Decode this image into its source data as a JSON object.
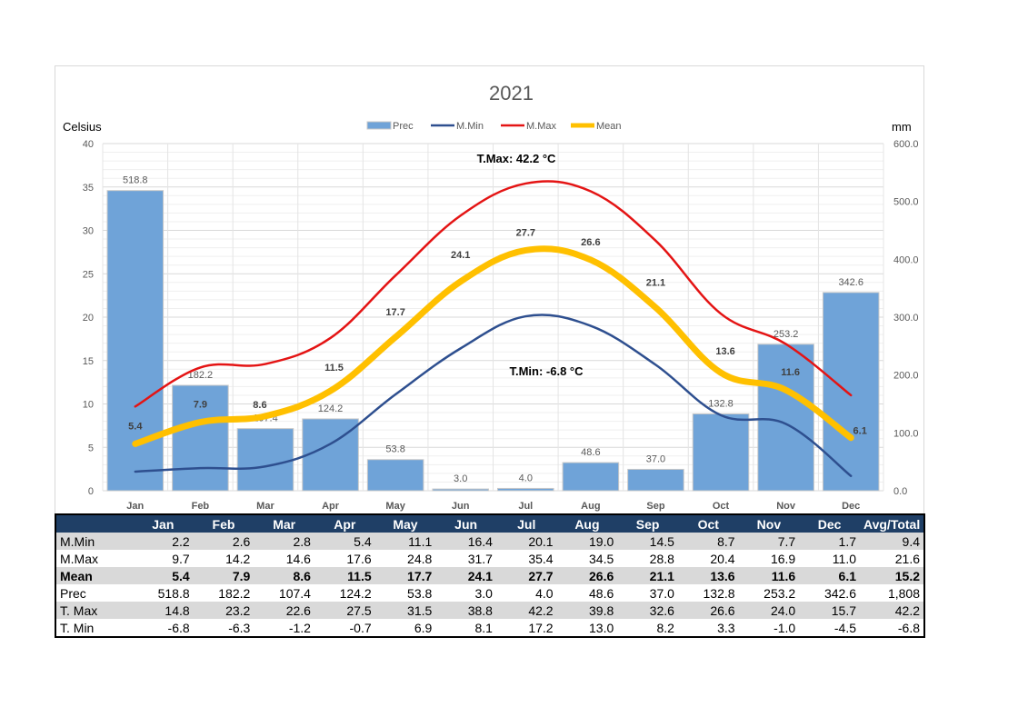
{
  "chart_data": {
    "type": "bar+line",
    "title": "2021",
    "ylabel_left": "Celsius",
    "ylabel_right": "mm",
    "categories": [
      "Jan",
      "Feb",
      "Mar",
      "Apr",
      "May",
      "Jun",
      "Jul",
      "Aug",
      "Sep",
      "Oct",
      "Nov",
      "Dec"
    ],
    "y_left_range": [
      0,
      40
    ],
    "y_left_ticks": [
      "0",
      "5",
      "10",
      "15",
      "20",
      "25",
      "30",
      "35",
      "40"
    ],
    "y_right_range": [
      0,
      600
    ],
    "y_right_ticks": [
      "0.0",
      "100.0",
      "200.0",
      "300.0",
      "400.0",
      "500.0",
      "600.0"
    ],
    "legend": [
      "Prec",
      "M.Min",
      "M.Max",
      "Mean"
    ],
    "legend_position": "top",
    "colors": {
      "Prec": "#6fa3d8",
      "M.Min": "#2e4f8f",
      "M.Max": "#e41414",
      "Mean": "#ffc000"
    },
    "series": [
      {
        "name": "Prec",
        "kind": "bar",
        "axis": "right",
        "values": [
          518.8,
          182.2,
          107.4,
          124.2,
          53.8,
          3.0,
          4.0,
          48.6,
          37.0,
          132.8,
          253.2,
          342.6
        ],
        "labels": [
          "518.8",
          "182.2",
          "107.4",
          "124.2",
          "53.8",
          "3.0",
          "4.0",
          "48.6",
          "37.0",
          "132.8",
          "253.2",
          "342.6"
        ]
      },
      {
        "name": "M.Min",
        "kind": "line",
        "axis": "left",
        "values": [
          2.2,
          2.6,
          2.8,
          5.4,
          11.1,
          16.4,
          20.1,
          19.0,
          14.5,
          8.7,
          7.7,
          1.7
        ]
      },
      {
        "name": "M.Max",
        "kind": "line",
        "axis": "left",
        "values": [
          9.7,
          14.2,
          14.6,
          17.6,
          24.8,
          31.7,
          35.4,
          34.5,
          28.8,
          20.4,
          16.9,
          11.0
        ]
      },
      {
        "name": "Mean",
        "kind": "line",
        "axis": "left",
        "values": [
          5.4,
          7.9,
          8.6,
          11.5,
          17.7,
          24.1,
          27.7,
          26.6,
          21.1,
          13.6,
          11.6,
          6.1
        ],
        "labels": [
          "5.4",
          "7.9",
          "8.6",
          "11.5",
          "17.7",
          "24.1",
          "27.7",
          "26.6",
          "21.1",
          "13.6",
          "11.6",
          "6.1"
        ]
      }
    ],
    "annotations": [
      "T.Max: 42.2 °C",
      "T.Min: -6.8 °C"
    ]
  },
  "table": {
    "headers": [
      "Jan",
      "Feb",
      "Mar",
      "Apr",
      "May",
      "Jun",
      "Jul",
      "Aug",
      "Sep",
      "Oct",
      "Nov",
      "Dec",
      "Avg/Total"
    ],
    "rows": [
      {
        "label": "M.Min",
        "values": [
          "2.2",
          "2.6",
          "2.8",
          "5.4",
          "11.1",
          "16.4",
          "20.1",
          "19.0",
          "14.5",
          "8.7",
          "7.7",
          "1.7",
          "9.4"
        ]
      },
      {
        "label": "M.Max",
        "values": [
          "9.7",
          "14.2",
          "14.6",
          "17.6",
          "24.8",
          "31.7",
          "35.4",
          "34.5",
          "28.8",
          "20.4",
          "16.9",
          "11.0",
          "21.6"
        ]
      },
      {
        "label": "Mean",
        "values": [
          "5.4",
          "7.9",
          "8.6",
          "11.5",
          "17.7",
          "24.1",
          "27.7",
          "26.6",
          "21.1",
          "13.6",
          "11.6",
          "6.1",
          "15.2"
        ]
      },
      {
        "label": "Prec",
        "values": [
          "518.8",
          "182.2",
          "107.4",
          "124.2",
          "53.8",
          "3.0",
          "4.0",
          "48.6",
          "37.0",
          "132.8",
          "253.2",
          "342.6",
          "1,808"
        ]
      },
      {
        "label": "T. Max",
        "values": [
          "14.8",
          "23.2",
          "22.6",
          "27.5",
          "31.5",
          "38.8",
          "42.2",
          "39.8",
          "32.6",
          "26.6",
          "24.0",
          "15.7",
          "42.2"
        ]
      },
      {
        "label": "T. Min",
        "values": [
          "-6.8",
          "-6.3",
          "-1.2",
          "-0.7",
          "6.9",
          "8.1",
          "17.2",
          "13.0",
          "8.2",
          "3.3",
          "-1.0",
          "-4.5",
          "-6.8"
        ]
      }
    ]
  }
}
